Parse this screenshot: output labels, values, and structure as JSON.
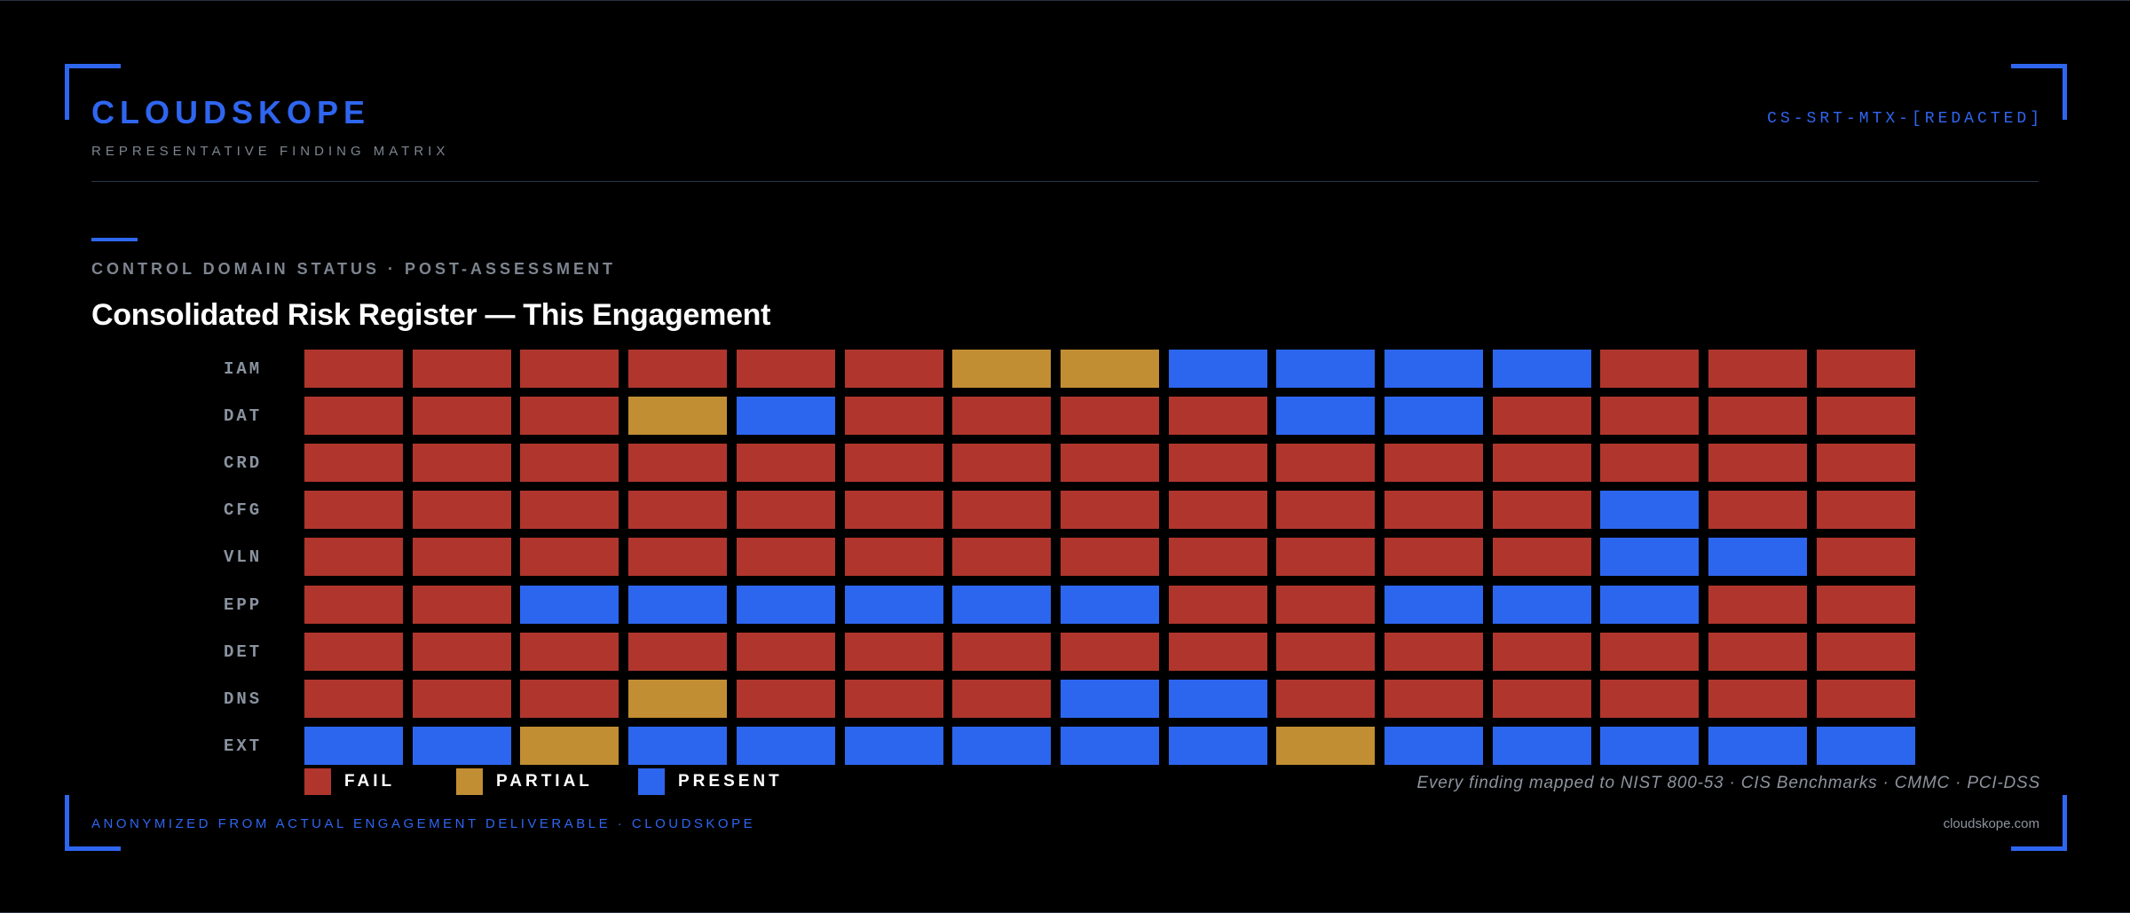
{
  "header": {
    "brand": "CLOUDSKOPE",
    "subtitle": "REPRESENTATIVE FINDING MATRIX",
    "doc_id": "CS-SRT-MTX-[REDACTED]"
  },
  "section": {
    "label": "CONTROL DOMAIN STATUS · POST-ASSESSMENT",
    "title": "Consolidated Risk Register — This Engagement"
  },
  "colors": {
    "accent": "#2f66f0",
    "fail": "#b0362d",
    "partial": "#c28e33",
    "present": "#2d66ee",
    "background": "#000000"
  },
  "chart_data": {
    "type": "heatmap",
    "rows": [
      "IAM",
      "DAT",
      "CRD",
      "CFG",
      "VLN",
      "EPP",
      "DET",
      "DNS",
      "EXT"
    ],
    "columns_per_row": 15,
    "status_key": {
      "F": "fail",
      "P": "partial",
      "R": "present"
    },
    "grid": [
      [
        "F",
        "F",
        "F",
        "F",
        "F",
        "F",
        "P",
        "P",
        "R",
        "R",
        "R",
        "R",
        "F",
        "F",
        "F"
      ],
      [
        "F",
        "F",
        "F",
        "P",
        "R",
        "F",
        "F",
        "F",
        "F",
        "R",
        "R",
        "F",
        "F",
        "F",
        "F"
      ],
      [
        "F",
        "F",
        "F",
        "F",
        "F",
        "F",
        "F",
        "F",
        "F",
        "F",
        "F",
        "F",
        "F",
        "F",
        "F"
      ],
      [
        "F",
        "F",
        "F",
        "F",
        "F",
        "F",
        "F",
        "F",
        "F",
        "F",
        "F",
        "F",
        "R",
        "F",
        "F"
      ],
      [
        "F",
        "F",
        "F",
        "F",
        "F",
        "F",
        "F",
        "F",
        "F",
        "F",
        "F",
        "F",
        "R",
        "R",
        "F"
      ],
      [
        "F",
        "F",
        "R",
        "R",
        "R",
        "R",
        "R",
        "R",
        "F",
        "F",
        "R",
        "R",
        "R",
        "F",
        "F"
      ],
      [
        "F",
        "F",
        "F",
        "F",
        "F",
        "F",
        "F",
        "F",
        "F",
        "F",
        "F",
        "F",
        "F",
        "F",
        "F"
      ],
      [
        "F",
        "F",
        "F",
        "P",
        "F",
        "F",
        "F",
        "R",
        "R",
        "F",
        "F",
        "F",
        "F",
        "F",
        "F"
      ],
      [
        "R",
        "R",
        "P",
        "R",
        "R",
        "R",
        "R",
        "R",
        "R",
        "P",
        "R",
        "R",
        "R",
        "R",
        "R"
      ]
    ]
  },
  "legend": {
    "fail": "FAIL",
    "partial": "PARTIAL",
    "present": "PRESENT"
  },
  "mapping_note": "Every finding mapped to NIST 800-53 · CIS Benchmarks · CMMC · PCI-DSS",
  "footer": {
    "left": "ANONYMIZED FROM ACTUAL ENGAGEMENT DELIVERABLE · CLOUDSKOPE",
    "right": "cloudskope.com"
  }
}
